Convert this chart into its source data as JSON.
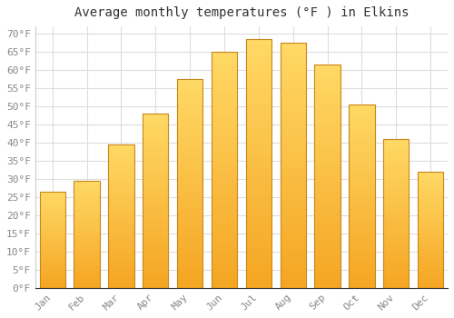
{
  "title": "Average monthly temperatures (°F ) in Elkins",
  "months": [
    "Jan",
    "Feb",
    "Mar",
    "Apr",
    "May",
    "Jun",
    "Jul",
    "Aug",
    "Sep",
    "Oct",
    "Nov",
    "Dec"
  ],
  "values": [
    26.5,
    29.5,
    39.5,
    48,
    57.5,
    65,
    68.5,
    67.5,
    61.5,
    50.5,
    41,
    32
  ],
  "bar_color_bottom": "#F5A623",
  "bar_color_top": "#FFD966",
  "bar_edge_color": "#C8871A",
  "plot_bg_color": "#ffffff",
  "fig_bg_color": "#ffffff",
  "grid_color": "#dddddd",
  "ytick_labels": [
    "0°F",
    "5°F",
    "10°F",
    "15°F",
    "20°F",
    "25°F",
    "30°F",
    "35°F",
    "40°F",
    "45°F",
    "50°F",
    "55°F",
    "60°F",
    "65°F",
    "70°F"
  ],
  "ytick_values": [
    0,
    5,
    10,
    15,
    20,
    25,
    30,
    35,
    40,
    45,
    50,
    55,
    60,
    65,
    70
  ],
  "ylim": [
    0,
    72
  ],
  "title_fontsize": 10,
  "tick_fontsize": 8,
  "tick_color": "#888888",
  "title_color": "#333333",
  "bar_width": 0.75
}
